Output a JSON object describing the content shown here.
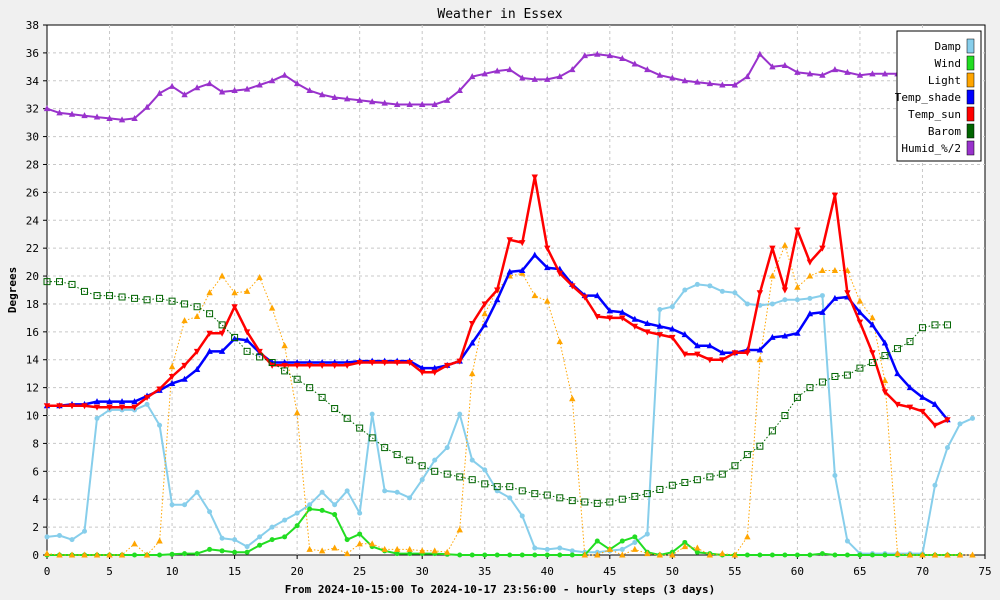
{
  "chart_data": {
    "type": "line",
    "title": "Weather in Essex",
    "xlabel": "From 2024-10-15:00 To 2024-10-17 23:56:00 - hourly steps (3 days)",
    "ylabel": "Degrees",
    "xlim": [
      0,
      75
    ],
    "ylim": [
      0,
      38
    ],
    "x_ticks": [
      0,
      5,
      10,
      15,
      20,
      25,
      30,
      35,
      40,
      45,
      50,
      55,
      60,
      65,
      70,
      75
    ],
    "y_ticks": [
      0,
      2,
      4,
      6,
      8,
      10,
      12,
      14,
      16,
      18,
      20,
      22,
      24,
      26,
      28,
      30,
      32,
      34,
      36,
      38
    ],
    "grid": true,
    "legend_position": "top-right",
    "series": [
      {
        "name": "Damp",
        "color": "#87ceeb",
        "style": "solid",
        "marker": "circle",
        "values": [
          1.3,
          1.4,
          1.1,
          1.7,
          9.8,
          10.4,
          10.4,
          10.4,
          10.8,
          9.3,
          3.6,
          3.6,
          4.5,
          3.1,
          1.2,
          1.1,
          0.6,
          1.3,
          2.0,
          2.5,
          3.0,
          3.6,
          4.5,
          3.6,
          4.6,
          3.0,
          10.1,
          4.6,
          4.5,
          4.1,
          5.4,
          6.8,
          7.7,
          10.1,
          6.8,
          6.1,
          4.6,
          4.1,
          2.8,
          0.5,
          0.4,
          0.5,
          0.3,
          0.2,
          0.2,
          0.3,
          0.4,
          0.9,
          1.5,
          17.6,
          17.8,
          19.0,
          19.4,
          19.3,
          18.9,
          18.8,
          18.0,
          17.9,
          18.0,
          18.3,
          18.3,
          18.4,
          18.6,
          5.7,
          1.0,
          0.1,
          0.1,
          0.1,
          0.1,
          0.1,
          0.1,
          5.0,
          7.7,
          9.4,
          9.8
        ]
      },
      {
        "name": "Wind",
        "color": "#22dd22",
        "style": "solid",
        "marker": "circle",
        "values": [
          0,
          0,
          0,
          0,
          0,
          0,
          0,
          0,
          0,
          0,
          0.05,
          0.1,
          0.1,
          0.4,
          0.3,
          0.2,
          0.2,
          0.7,
          1.1,
          1.3,
          2.1,
          3.3,
          3.2,
          2.9,
          1.1,
          1.5,
          0.6,
          0.3,
          0.1,
          0.1,
          0.1,
          0.1,
          0.05,
          0,
          0,
          0,
          0,
          0,
          0,
          0,
          0,
          0,
          0,
          0,
          1.0,
          0.4,
          1.0,
          1.3,
          0.2,
          0,
          0.2,
          0.9,
          0.2,
          0.1,
          0,
          0,
          0,
          0,
          0,
          0,
          0,
          0,
          0.1,
          0,
          0,
          0,
          0,
          0,
          0,
          0,
          0,
          0,
          0,
          0
        ]
      },
      {
        "name": "Light",
        "color": "#ffa500",
        "style": "dotted",
        "marker": "triangle-up",
        "values": [
          0.1,
          0,
          0,
          0,
          0,
          0,
          0,
          0.8,
          0,
          1.0,
          13.5,
          16.8,
          17.1,
          18.8,
          20.0,
          18.8,
          18.9,
          19.9,
          17.7,
          15.0,
          10.2,
          0.4,
          0.3,
          0.5,
          0.1,
          0.8,
          0.8,
          0.4,
          0.4,
          0.4,
          0.3,
          0.3,
          0.2,
          1.8,
          13.0,
          17.3,
          19.0,
          20.0,
          20.2,
          18.6,
          18.2,
          15.3,
          11.2,
          0,
          0,
          0.4,
          0,
          0.4,
          0.1,
          0,
          0,
          0.6,
          0.5,
          0,
          0.1,
          0,
          1.3,
          14.0,
          20.0,
          22.2,
          19.2,
          20.0,
          20.4,
          20.4,
          20.4,
          18.2,
          17.0,
          12.5,
          0.1,
          0,
          0,
          0,
          0,
          0,
          0
        ]
      },
      {
        "name": "Temp_shade",
        "color": "#0000ff",
        "style": "solid",
        "marker": "triangle-up",
        "values": [
          10.7,
          10.7,
          10.8,
          10.8,
          11.0,
          11.0,
          11.0,
          11.0,
          11.4,
          11.8,
          12.3,
          12.6,
          13.3,
          14.6,
          14.6,
          15.5,
          15.4,
          14.5,
          13.8,
          13.8,
          13.8,
          13.8,
          13.8,
          13.8,
          13.8,
          13.9,
          13.9,
          13.9,
          13.9,
          13.9,
          13.4,
          13.4,
          13.6,
          13.9,
          15.2,
          16.5,
          18.3,
          20.3,
          20.4,
          21.5,
          20.6,
          20.5,
          19.4,
          18.6,
          18.6,
          17.5,
          17.4,
          16.9,
          16.6,
          16.4,
          16.2,
          15.8,
          15.0,
          15.0,
          14.5,
          14.5,
          14.7,
          14.7,
          15.6,
          15.7,
          15.9,
          17.3,
          17.4,
          18.4,
          18.5,
          17.4,
          16.5,
          15.2,
          13.0,
          12.0,
          11.3,
          10.8,
          9.7
        ]
      },
      {
        "name": "Temp_sun",
        "color": "#ff0000",
        "style": "solid",
        "marker": "triangle-down",
        "values": [
          10.7,
          10.7,
          10.7,
          10.7,
          10.6,
          10.6,
          10.6,
          10.6,
          11.3,
          11.9,
          12.8,
          13.6,
          14.6,
          15.9,
          15.9,
          17.8,
          16.0,
          14.6,
          13.6,
          13.6,
          13.6,
          13.6,
          13.6,
          13.6,
          13.6,
          13.8,
          13.8,
          13.8,
          13.8,
          13.8,
          13.1,
          13.1,
          13.6,
          13.9,
          16.6,
          18.0,
          19.0,
          22.6,
          22.4,
          27.1,
          22.0,
          20.2,
          19.3,
          18.5,
          17.1,
          17.0,
          17.0,
          16.4,
          16.0,
          15.8,
          15.6,
          14.4,
          14.4,
          14.0,
          14.0,
          14.5,
          14.5,
          18.8,
          22.0,
          19.0,
          23.3,
          21.0,
          22.0,
          25.8,
          18.8,
          16.7,
          14.5,
          11.7,
          10.8,
          10.6,
          10.3,
          9.3,
          9.7
        ]
      },
      {
        "name": "Barom",
        "color": "#006400",
        "style": "dotted",
        "marker": "square",
        "values": [
          19.6,
          19.6,
          19.4,
          18.9,
          18.6,
          18.6,
          18.5,
          18.4,
          18.3,
          18.4,
          18.2,
          18.0,
          17.8,
          17.3,
          16.5,
          15.6,
          14.6,
          14.2,
          13.8,
          13.2,
          12.6,
          12.0,
          11.3,
          10.5,
          9.8,
          9.1,
          8.4,
          7.7,
          7.2,
          6.8,
          6.4,
          6.0,
          5.8,
          5.6,
          5.4,
          5.1,
          4.9,
          4.9,
          4.6,
          4.4,
          4.3,
          4.1,
          3.9,
          3.8,
          3.7,
          3.8,
          4.0,
          4.2,
          4.4,
          4.7,
          5.0,
          5.2,
          5.4,
          5.6,
          5.8,
          6.4,
          7.2,
          7.8,
          8.9,
          10.0,
          11.3,
          12.0,
          12.4,
          12.8,
          12.9,
          13.4,
          13.8,
          14.3,
          14.8,
          15.3,
          16.3,
          16.5,
          16.5
        ]
      },
      {
        "name": "Humid_%/2",
        "color": "#9932cc",
        "style": "solid",
        "marker": "triangle-up",
        "values": [
          32.0,
          31.7,
          31.6,
          31.5,
          31.4,
          31.3,
          31.2,
          31.3,
          32.1,
          33.1,
          33.6,
          33.0,
          33.5,
          33.8,
          33.2,
          33.3,
          33.4,
          33.7,
          34.0,
          34.4,
          33.8,
          33.3,
          33.0,
          32.8,
          32.7,
          32.6,
          32.5,
          32.4,
          32.3,
          32.3,
          32.3,
          32.3,
          32.6,
          33.3,
          34.3,
          34.5,
          34.7,
          34.8,
          34.2,
          34.1,
          34.1,
          34.3,
          34.8,
          35.8,
          35.9,
          35.8,
          35.6,
          35.2,
          34.8,
          34.4,
          34.2,
          34.0,
          33.9,
          33.8,
          33.7,
          33.7,
          34.3,
          35.9,
          35.0,
          35.1,
          34.6,
          34.5,
          34.4,
          34.8,
          34.6,
          34.4,
          34.5,
          34.5,
          34.5,
          34.5
        ]
      }
    ]
  }
}
